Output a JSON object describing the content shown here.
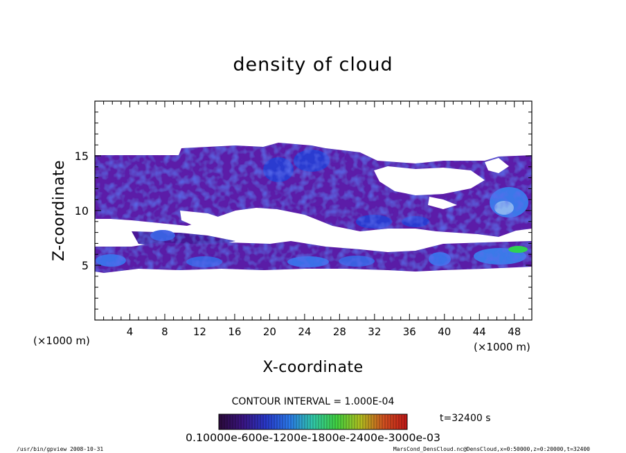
{
  "chart_data": {
    "type": "heatmap",
    "title": "density of cloud",
    "xlabel": "X-coordinate",
    "ylabel": "Z-coordinate",
    "x_unit_left": "(×1000 m)",
    "x_unit_right": "(×1000 m)",
    "xlim": [
      0,
      50
    ],
    "ylim": [
      0,
      20
    ],
    "x_ticks": [
      "4",
      "8",
      "12",
      "16",
      "20",
      "24",
      "28",
      "32",
      "36",
      "40",
      "44",
      "48"
    ],
    "y_ticks": [
      "5",
      "10",
      "15"
    ],
    "contour_interval_label": "CONTOUR INTERVAL = 1.000E-04",
    "time_label": "t=32400 s",
    "colorbar_labels": "0.10000e-600e-1200e-1800e-2400e-3000e-03",
    "colormap": [
      "#2a0a3a",
      "#3a1480",
      "#2838c8",
      "#2a78e8",
      "#30c8a8",
      "#40d040",
      "#b0c020",
      "#d05020",
      "#c01818"
    ],
    "regions": [
      {
        "name": "upper cloud layer",
        "x": [
          0,
          50
        ],
        "z": [
          9.5,
          15.2
        ],
        "level": 0.15
      },
      {
        "name": "upper cloud cap",
        "x": [
          17,
          34
        ],
        "z": [
          15,
          16.2
        ],
        "level": 0.2
      },
      {
        "name": "lower cloud band",
        "x": [
          0,
          50
        ],
        "z": [
          4.6,
          7.2
        ],
        "level": 0.25
      },
      {
        "name": "dense core",
        "x": [
          46,
          50
        ],
        "z": [
          6.2,
          6.9
        ],
        "level": 0.45
      }
    ],
    "footer_left": "/usr/bin/gpview   2008-10-31",
    "footer_right": "MarsCond_DensCloud.nc@DensCloud,x=0:50000,z=0:20000,t=32400"
  }
}
